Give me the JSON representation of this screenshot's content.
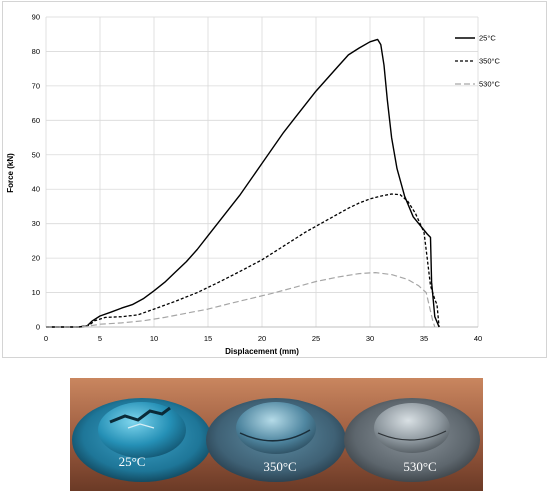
{
  "chart_data": {
    "type": "line",
    "title": "",
    "xlabel": "Displacement (mm)",
    "ylabel": "Force (kN)",
    "xlim": [
      0,
      40
    ],
    "ylim": [
      0,
      90
    ],
    "xticks": [
      "0",
      "5",
      "10",
      "15",
      "20",
      "25",
      "30",
      "35",
      "40"
    ],
    "yticks": [
      "0",
      "10",
      "20",
      "30",
      "40",
      "50",
      "60",
      "70",
      "80",
      "90"
    ],
    "grid": true,
    "legend_position": "top-right",
    "series": [
      {
        "name": "25°C",
        "color": "#000000",
        "style": "solid",
        "points": [
          [
            0,
            0
          ],
          [
            3,
            0
          ],
          [
            3.8,
            0.3
          ],
          [
            4.3,
            1.8
          ],
          [
            5,
            3.2
          ],
          [
            6,
            4.3
          ],
          [
            7,
            5.5
          ],
          [
            8,
            6.5
          ],
          [
            9,
            8.2
          ],
          [
            10,
            10.5
          ],
          [
            11,
            13
          ],
          [
            12,
            16
          ],
          [
            13,
            19
          ],
          [
            14,
            22.5
          ],
          [
            15,
            26.5
          ],
          [
            16,
            30.5
          ],
          [
            17,
            34.5
          ],
          [
            18,
            38.5
          ],
          [
            19,
            43
          ],
          [
            20,
            47.5
          ],
          [
            21,
            52
          ],
          [
            22,
            56.5
          ],
          [
            23,
            60.5
          ],
          [
            24,
            64.5
          ],
          [
            25,
            68.5
          ],
          [
            26,
            72
          ],
          [
            27,
            75.5
          ],
          [
            28,
            79
          ],
          [
            29,
            81
          ],
          [
            30,
            82.8
          ],
          [
            30.7,
            83.5
          ],
          [
            31,
            82
          ],
          [
            31.3,
            76
          ],
          [
            31.6,
            66
          ],
          [
            32,
            55
          ],
          [
            32.5,
            46
          ],
          [
            33.2,
            38
          ],
          [
            34,
            32
          ],
          [
            35.3,
            27
          ],
          [
            35.6,
            26
          ],
          [
            35.7,
            13
          ],
          [
            36,
            3
          ],
          [
            36.4,
            0
          ]
        ]
      },
      {
        "name": "350°C",
        "color": "#000000",
        "style": "dashed",
        "points": [
          [
            0,
            0
          ],
          [
            3,
            0
          ],
          [
            4,
            0.5
          ],
          [
            4.5,
            1.8
          ],
          [
            5.5,
            2.8
          ],
          [
            7,
            3
          ],
          [
            8.5,
            3.5
          ],
          [
            10,
            5.2
          ],
          [
            12,
            7.5
          ],
          [
            14,
            10
          ],
          [
            16,
            13
          ],
          [
            18,
            16.2
          ],
          [
            20,
            19.5
          ],
          [
            22,
            23.5
          ],
          [
            24,
            27.5
          ],
          [
            26,
            31
          ],
          [
            28,
            34.5
          ],
          [
            29,
            36
          ],
          [
            30,
            37.2
          ],
          [
            31,
            38
          ],
          [
            32,
            38.6
          ],
          [
            32.8,
            38.4
          ],
          [
            33.5,
            36.5
          ],
          [
            34.2,
            33
          ],
          [
            35,
            27.5
          ],
          [
            35.3,
            20
          ],
          [
            35.6,
            12
          ],
          [
            36,
            8
          ],
          [
            36.2,
            6.5
          ],
          [
            36.4,
            0
          ]
        ]
      },
      {
        "name": "530°C",
        "color": "#a6a6a6",
        "style": "dashed",
        "points": [
          [
            0,
            0
          ],
          [
            3,
            0
          ],
          [
            4,
            0.3
          ],
          [
            5,
            0.8
          ],
          [
            7,
            1.2
          ],
          [
            9,
            1.8
          ],
          [
            11,
            2.8
          ],
          [
            13,
            4
          ],
          [
            15,
            5.2
          ],
          [
            17,
            6.8
          ],
          [
            19,
            8.3
          ],
          [
            21,
            9.8
          ],
          [
            23,
            11.5
          ],
          [
            25,
            13.2
          ],
          [
            27,
            14.5
          ],
          [
            29,
            15.5
          ],
          [
            30.5,
            15.8
          ],
          [
            32,
            15.2
          ],
          [
            33.5,
            13.8
          ],
          [
            34.5,
            12
          ],
          [
            35.2,
            10
          ],
          [
            35.5,
            6
          ],
          [
            35.8,
            2
          ],
          [
            36,
            0
          ]
        ]
      }
    ]
  },
  "photo": {
    "labels": [
      "25°C",
      "350°C",
      "530°C"
    ]
  }
}
